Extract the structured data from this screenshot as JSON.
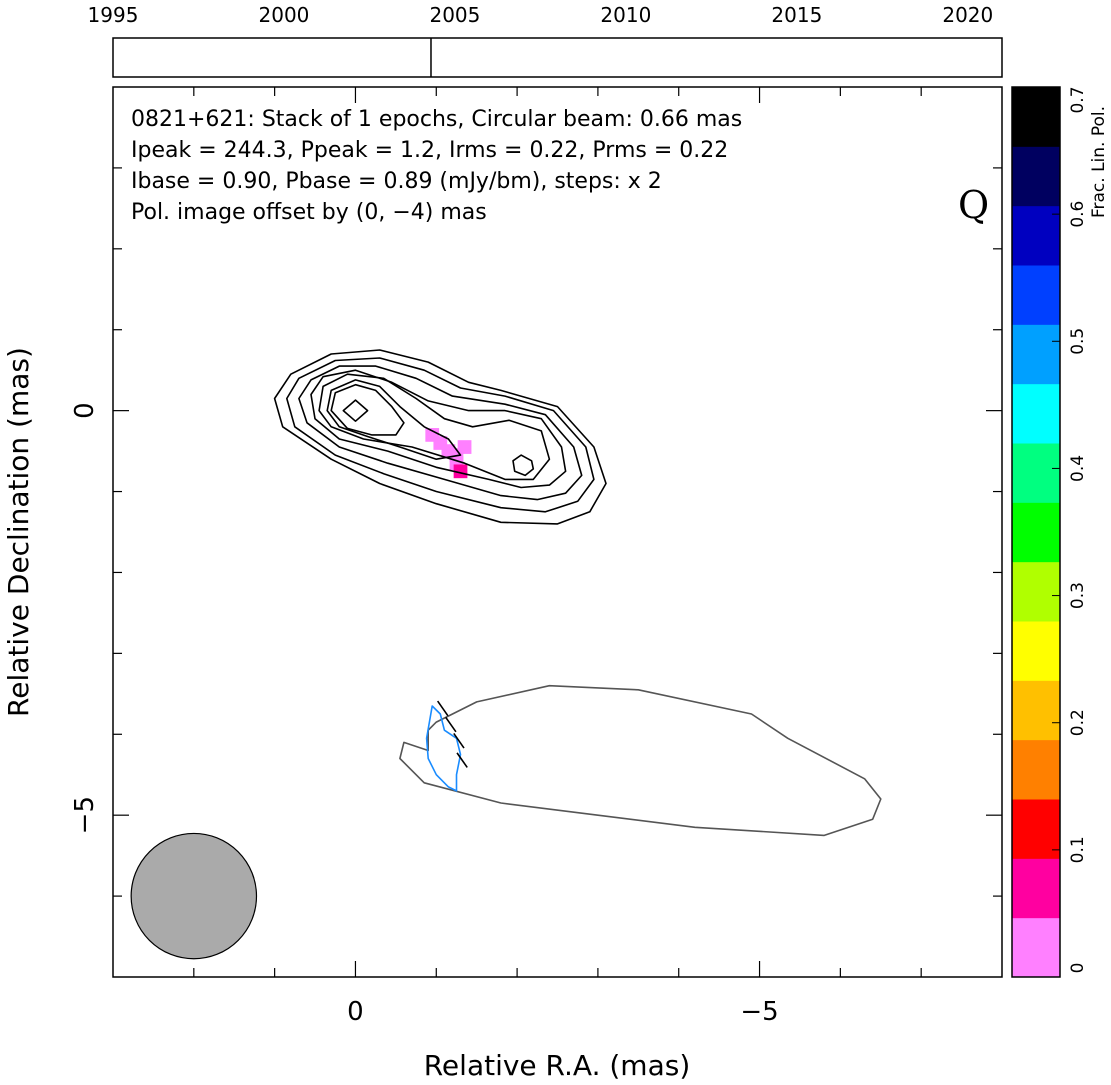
{
  "chart_data": {
    "type": "contour",
    "source": "0821+621",
    "band_label": "Q",
    "info_lines": [
      "0821+621: Stack of 1 epochs, Circular beam: 0.66 mas",
      "Ipeak = 244.3, Ppeak = 1.2, Irms = 0.22, Prms = 0.22",
      "Ibase = 0.90, Pbase = 0.89 (mJy/bm), steps: x 2"
    ],
    "offset_note": "Pol. image offset by (0, −4) mas",
    "xlabel": "Relative R.A. (mas)",
    "ylabel": "Relative Declination (mas)",
    "xlim": [
      3,
      -8
    ],
    "ylim": [
      -7,
      4
    ],
    "x_tick_labels": [
      {
        "value": 0,
        "text": "0"
      },
      {
        "value": -5,
        "text": "−5"
      }
    ],
    "y_tick_labels": [
      {
        "value": 0,
        "text": "0"
      },
      {
        "value": -5,
        "text": "−5"
      }
    ],
    "x_minor_ticks": [
      2,
      1,
      0,
      -1,
      -2,
      -3,
      -4,
      -5,
      -6,
      -7
    ],
    "y_minor_ticks": [
      3,
      2,
      1,
      0,
      -1,
      -2,
      -3,
      -4,
      -5,
      -6
    ],
    "beam": {
      "ra": 2.0,
      "dec": -6.0,
      "radius_mas": 0.33
    },
    "intensity_contours": [
      {
        "level": 1,
        "points": [
          [
            0.9,
            -0.2
          ],
          [
            1.0,
            0.15
          ],
          [
            0.8,
            0.45
          ],
          [
            0.3,
            0.7
          ],
          [
            -0.3,
            0.75
          ],
          [
            -0.9,
            0.6
          ],
          [
            -1.4,
            0.35
          ],
          [
            -1.8,
            0.25
          ],
          [
            -2.5,
            0.05
          ],
          [
            -2.95,
            -0.45
          ],
          [
            -3.1,
            -0.9
          ],
          [
            -2.9,
            -1.25
          ],
          [
            -2.5,
            -1.4
          ],
          [
            -1.8,
            -1.38
          ],
          [
            -1.0,
            -1.15
          ],
          [
            -0.3,
            -0.9
          ],
          [
            0.3,
            -0.6
          ],
          [
            0.9,
            -0.2
          ]
        ]
      },
      {
        "level": 2,
        "points": [
          [
            0.75,
            -0.2
          ],
          [
            0.85,
            0.15
          ],
          [
            0.7,
            0.4
          ],
          [
            0.25,
            0.62
          ],
          [
            -0.3,
            0.65
          ],
          [
            -0.85,
            0.5
          ],
          [
            -1.3,
            0.28
          ],
          [
            -1.85,
            0.18
          ],
          [
            -2.45,
            0.0
          ],
          [
            -2.85,
            -0.45
          ],
          [
            -2.95,
            -0.85
          ],
          [
            -2.75,
            -1.12
          ],
          [
            -2.35,
            -1.25
          ],
          [
            -1.8,
            -1.2
          ],
          [
            -1.0,
            -1.0
          ],
          [
            -0.35,
            -0.78
          ],
          [
            0.25,
            -0.55
          ],
          [
            0.75,
            -0.2
          ]
        ]
      },
      {
        "level": 4,
        "points": [
          [
            0.6,
            -0.15
          ],
          [
            0.7,
            0.15
          ],
          [
            0.55,
            0.38
          ],
          [
            0.2,
            0.55
          ],
          [
            -0.25,
            0.55
          ],
          [
            -0.75,
            0.4
          ],
          [
            -1.2,
            0.18
          ],
          [
            -1.85,
            0.08
          ],
          [
            -2.35,
            -0.05
          ],
          [
            -2.7,
            -0.45
          ],
          [
            -2.8,
            -0.8
          ],
          [
            -2.6,
            -1.02
          ],
          [
            -2.25,
            -1.1
          ],
          [
            -1.8,
            -1.05
          ],
          [
            -1.1,
            -0.85
          ],
          [
            -0.4,
            -0.65
          ],
          [
            0.2,
            -0.45
          ],
          [
            0.6,
            -0.15
          ]
        ]
      },
      {
        "level": 8,
        "points": [
          [
            0.5,
            -0.1
          ],
          [
            0.55,
            0.2
          ],
          [
            0.4,
            0.42
          ],
          [
            0.0,
            0.5
          ],
          [
            -0.45,
            0.35
          ],
          [
            -0.9,
            0.12
          ],
          [
            -1.4,
            0.0
          ],
          [
            -1.85,
            0.0
          ],
          [
            -2.3,
            -0.1
          ],
          [
            -2.55,
            -0.45
          ],
          [
            -2.6,
            -0.75
          ],
          [
            -2.4,
            -0.92
          ],
          [
            -2.05,
            -0.95
          ],
          [
            -1.65,
            -0.85
          ],
          [
            -1.0,
            -0.7
          ],
          [
            -0.4,
            -0.5
          ],
          [
            0.2,
            -0.35
          ],
          [
            0.5,
            -0.1
          ]
        ]
      },
      {
        "level": 16,
        "points": [
          [
            0.45,
            0.0
          ],
          [
            0.4,
            0.3
          ],
          [
            0.1,
            0.45
          ],
          [
            -0.35,
            0.4
          ],
          [
            -0.75,
            0.15
          ],
          [
            -1.1,
            -0.1
          ],
          [
            -1.45,
            -0.2
          ],
          [
            -1.9,
            -0.12
          ],
          [
            -2.3,
            -0.25
          ],
          [
            -2.4,
            -0.6
          ],
          [
            -2.2,
            -0.85
          ],
          [
            -1.85,
            -0.85
          ],
          [
            -1.35,
            -0.65
          ],
          [
            -0.7,
            -0.45
          ],
          [
            -0.1,
            -0.35
          ],
          [
            0.3,
            -0.2
          ],
          [
            0.45,
            0.0
          ]
        ]
      },
      {
        "level": 32,
        "points": [
          [
            0.35,
            0.0
          ],
          [
            0.3,
            0.25
          ],
          [
            0.0,
            0.38
          ],
          [
            -0.3,
            0.3
          ],
          [
            -0.55,
            0.05
          ],
          [
            -0.85,
            -0.2
          ],
          [
            -1.15,
            -0.35
          ],
          [
            -1.3,
            -0.55
          ],
          [
            -1.0,
            -0.6
          ],
          [
            -0.55,
            -0.45
          ],
          [
            -0.15,
            -0.32
          ],
          [
            0.2,
            -0.2
          ],
          [
            0.35,
            0.0
          ]
        ]
      },
      {
        "level": 64,
        "points": [
          [
            0.3,
            0.0
          ],
          [
            0.25,
            0.22
          ],
          [
            0.0,
            0.32
          ],
          [
            -0.25,
            0.25
          ],
          [
            -0.45,
            0.05
          ],
          [
            -0.6,
            -0.15
          ],
          [
            -0.5,
            -0.3
          ],
          [
            -0.2,
            -0.3
          ],
          [
            0.1,
            -0.22
          ],
          [
            0.3,
            0.0
          ]
        ]
      },
      {
        "level": 128,
        "points": [
          [
            0.15,
            0.0
          ],
          [
            0.0,
            0.13
          ],
          [
            -0.15,
            0.0
          ],
          [
            0.0,
            -0.13
          ],
          [
            0.15,
            0.0
          ]
        ]
      },
      {
        "level": "peak2",
        "points": [
          [
            -2.05,
            -0.55
          ],
          [
            -2.18,
            -0.62
          ],
          [
            -2.2,
            -0.72
          ],
          [
            -2.1,
            -0.8
          ],
          [
            -1.97,
            -0.75
          ],
          [
            -1.95,
            -0.62
          ],
          [
            -2.05,
            -0.55
          ]
        ]
      }
    ],
    "polarized_contour": [
      [
        0.9,
        -4.2
      ],
      [
        0.9,
        -3.95
      ],
      [
        1.0,
        -3.85
      ],
      [
        1.5,
        -3.6
      ],
      [
        2.4,
        -3.4
      ],
      [
        3.5,
        -3.45
      ],
      [
        4.9,
        -3.75
      ],
      [
        5.35,
        -4.05
      ],
      [
        6.3,
        -4.55
      ],
      [
        6.5,
        -4.8
      ],
      [
        6.4,
        -5.05
      ],
      [
        5.8,
        -5.25
      ],
      [
        4.2,
        -5.15
      ],
      [
        3.0,
        -5.0
      ],
      [
        1.8,
        -4.85
      ],
      [
        0.85,
        -4.6
      ],
      [
        0.55,
        -4.3
      ],
      [
        0.6,
        -4.1
      ],
      [
        0.9,
        -4.2
      ]
    ],
    "polarized_contour_mode": "offset_ra_dec",
    "fracpol_contour": [
      [
        -0.95,
        -3.65
      ],
      [
        -1.05,
        -3.75
      ],
      [
        -1.1,
        -3.95
      ],
      [
        -1.25,
        -4.05
      ],
      [
        -1.3,
        -4.25
      ],
      [
        -1.25,
        -4.5
      ],
      [
        -1.25,
        -4.7
      ],
      [
        -1.15,
        -4.65
      ],
      [
        -1.0,
        -4.5
      ],
      [
        -0.9,
        -4.3
      ],
      [
        -0.88,
        -4.05
      ],
      [
        -0.95,
        -3.65
      ]
    ],
    "evpa_ticks": [
      {
        "ra": -1.08,
        "dec": -3.68,
        "angle_deg": 55,
        "length": 0.22
      },
      {
        "ra": -1.18,
        "dec": -3.88,
        "angle_deg": 55,
        "length": 0.22
      },
      {
        "ra": -1.28,
        "dec": -4.08,
        "angle_deg": 55,
        "length": 0.22
      },
      {
        "ra": -1.32,
        "dec": -4.32,
        "angle_deg": 55,
        "length": 0.22
      }
    ],
    "fracpol_pixels": [
      {
        "ra": -0.95,
        "dec": -0.3,
        "value": 0.01
      },
      {
        "ra": -1.05,
        "dec": -0.4,
        "value": 0.01
      },
      {
        "ra": -1.15,
        "dec": -0.5,
        "value": 0.015
      },
      {
        "ra": -1.25,
        "dec": -0.55,
        "value": 0.02
      },
      {
        "ra": -1.35,
        "dec": -0.45,
        "value": 0.02
      },
      {
        "ra": -1.25,
        "dec": -0.65,
        "value": 0.025
      },
      {
        "ra": -1.3,
        "dec": -0.75,
        "value": 0.05
      }
    ],
    "timeline": {
      "years": [
        "1995",
        "2000",
        "2005",
        "2010",
        "2015",
        "2020"
      ],
      "year_values": [
        1995,
        2000,
        2005,
        2010,
        2015,
        2020
      ],
      "range": [
        1995,
        2021
      ],
      "epochs": [
        2004.3
      ]
    },
    "colorbar": {
      "label": "Frac. Lin. Pol.",
      "range": [
        0,
        0.7
      ],
      "tick_labels": [
        "0",
        "0.1",
        "0.2",
        "0.3",
        "0.4",
        "0.5",
        "0.6",
        "0.7"
      ],
      "tick_values": [
        0,
        0.1,
        0.2,
        0.3,
        0.4,
        0.5,
        0.6,
        0.7
      ],
      "colormap": [
        "#ff80ff",
        "#ff00a0",
        "#ff0000",
        "#ff8000",
        "#ffc000",
        "#ffff00",
        "#b0ff00",
        "#00ff00",
        "#00ff80",
        "#00ffff",
        "#00a0ff",
        "#0040ff",
        "#0000c0",
        "#000060",
        "#000000"
      ]
    },
    "colors": {
      "ipol": "#000000",
      "ppol": "#555555",
      "fracpol": "#1a8cff",
      "offset_note": "#1a8cff",
      "beam_fill": "#aaaaaa"
    }
  }
}
